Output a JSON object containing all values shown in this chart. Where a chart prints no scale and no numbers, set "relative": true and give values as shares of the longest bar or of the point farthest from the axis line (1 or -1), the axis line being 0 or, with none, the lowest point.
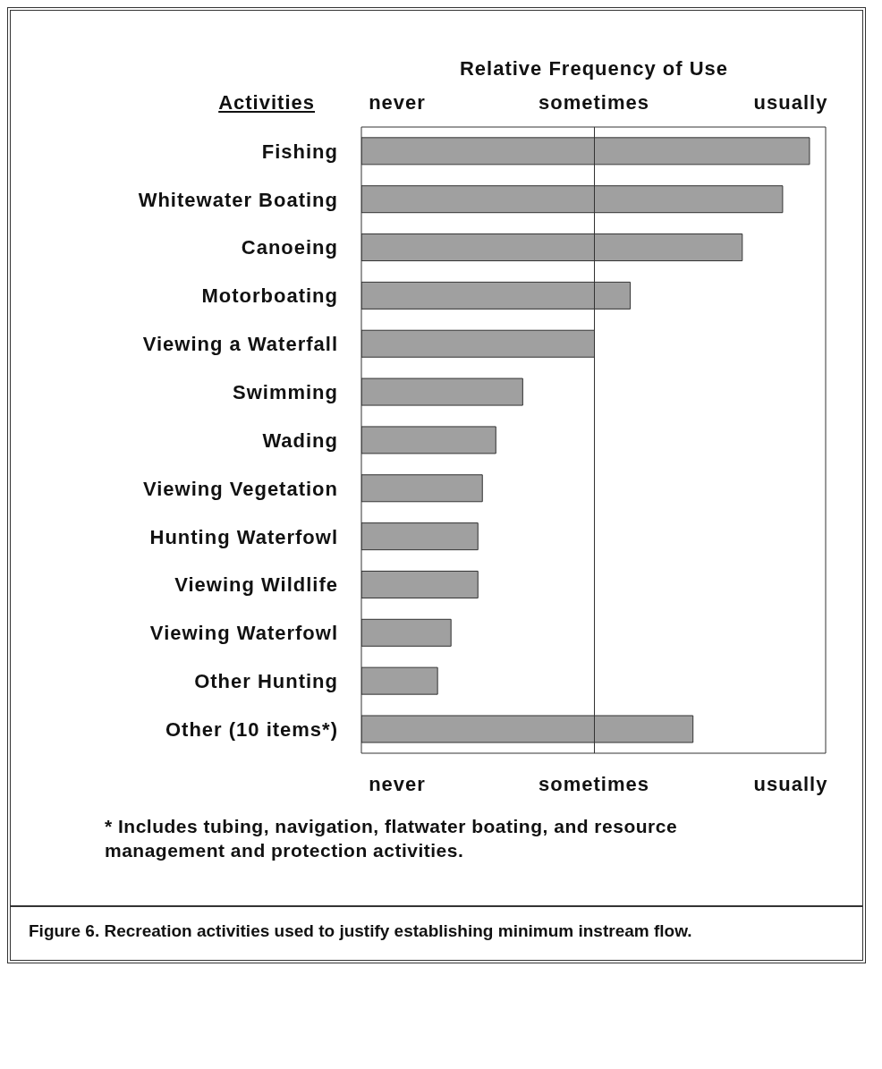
{
  "chart_data": {
    "type": "bar",
    "orientation": "horizontal",
    "relative": true,
    "title": "Figure 6. Recreation activities used to justify establishing minimum instream flow.",
    "x2label": "Relative Frequency of Use",
    "ylabel": "Activities",
    "categories": [
      "Fishing",
      "Whitewater Boating",
      "Canoeing",
      "Motorboating",
      "Viewing a Waterfall",
      "Swimming",
      "Wading",
      "Viewing Vegetation",
      "Hunting Waterfowl",
      "Viewing Wildlife",
      "Viewing Waterfowl",
      "Other Hunting",
      "Other (10 items*)"
    ],
    "values": [
      1,
      0.94,
      0.85,
      0.6,
      0.52,
      0.36,
      0.3,
      0.27,
      0.26,
      0.26,
      0.2,
      0.17,
      0.74
    ],
    "color": "#a0a0a0",
    "ref_lines": [
      {
        "axis": "x",
        "value": 0.52
      }
    ],
    "annotations": [
      "never",
      "sometimes",
      "usually",
      "never",
      "sometimes",
      "usually",
      "* Includes tubing, navigation, flatwater boating, and resource management and protection activities."
    ]
  }
}
